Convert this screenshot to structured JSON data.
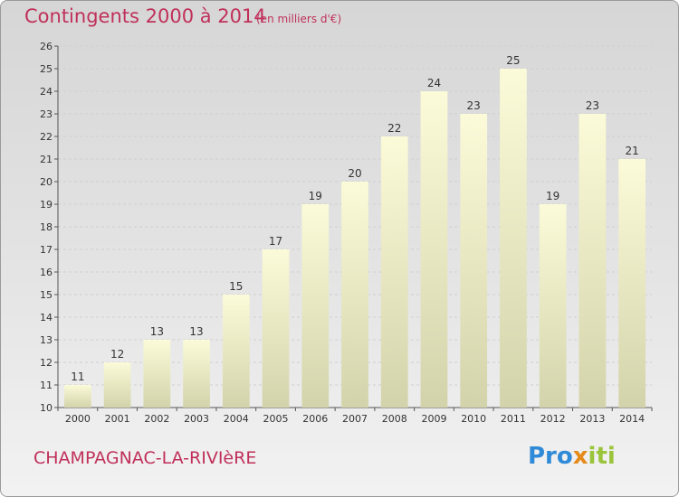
{
  "header": {
    "title": "Contingents 2000 à 2014",
    "subtitle": "(en milliers d'€)"
  },
  "footer": {
    "commune": "CHAMPAGNAC-LA-RIVIèRE",
    "logo": [
      "Pro",
      "x",
      "iti"
    ]
  },
  "colors": {
    "accent": "#c0305a",
    "bar_top": "#fbfbd9",
    "bar_bottom": "#d3d3ab",
    "grid": "#cfcfcf"
  },
  "chart_data": {
    "type": "bar",
    "title": "Contingents 2000 à 2014",
    "subtitle": "(en milliers d'€)",
    "categories": [
      "2000",
      "2001",
      "2002",
      "2003",
      "2004",
      "2005",
      "2006",
      "2007",
      "2008",
      "2009",
      "2010",
      "2011",
      "2012",
      "2013",
      "2014"
    ],
    "values": [
      11,
      12,
      13,
      13,
      15,
      17,
      19,
      20,
      22,
      24,
      23,
      25,
      19,
      23,
      21
    ],
    "ylim": [
      10,
      26
    ],
    "yticks": [
      10,
      11,
      12,
      13,
      14,
      15,
      16,
      17,
      18,
      19,
      20,
      21,
      22,
      23,
      24,
      25,
      26
    ],
    "grid": "horizontal, dashed",
    "data_labels": true,
    "legend": "none"
  }
}
